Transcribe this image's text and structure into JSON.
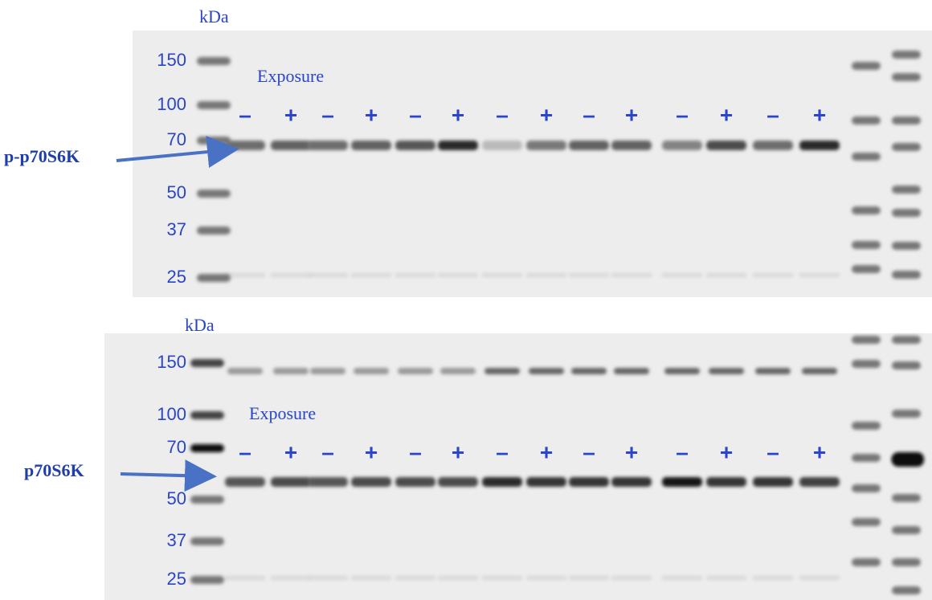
{
  "panels": [
    {
      "kda_label": "kDa",
      "markers": [
        "150",
        "100",
        "70",
        "50",
        "37",
        "25"
      ],
      "exposure_label": "Exposure",
      "signs": [
        "–",
        "+",
        "–",
        "+",
        "–",
        "+",
        "–",
        "+",
        "–",
        "+",
        "–",
        "+",
        "–",
        "+"
      ],
      "protein_label": "p-p70S6K"
    },
    {
      "kda_label": "kDa",
      "markers": [
        "150",
        "100",
        "70",
        "50",
        "37",
        "25"
      ],
      "exposure_label": "Exposure",
      "signs": [
        "–",
        "+",
        "–",
        "+",
        "–",
        "+",
        "–",
        "+",
        "–",
        "+",
        "–",
        "+",
        "–",
        "+"
      ],
      "protein_label": "p70S6K"
    }
  ]
}
